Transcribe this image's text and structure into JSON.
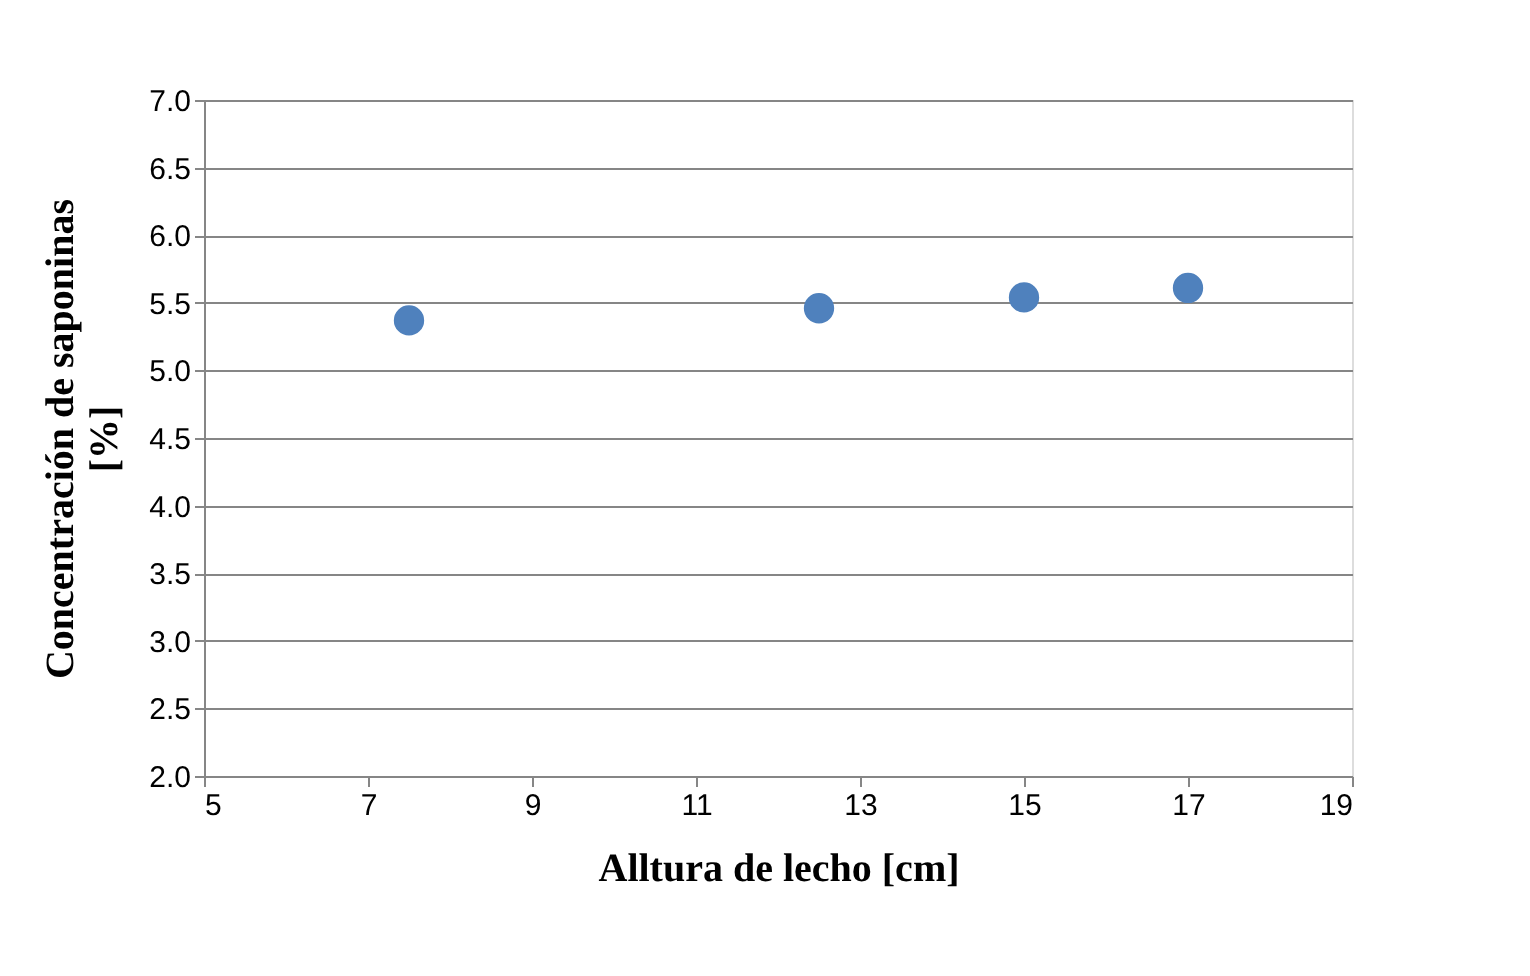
{
  "chart_data": {
    "type": "scatter",
    "xlabel": "Alltura de lecho [cm]",
    "ylabel": "Concentración de saponinas [%]",
    "x": [
      7.5,
      12.5,
      15,
      17
    ],
    "series": [
      {
        "color": "#4f81bd",
        "values": [
          5.37,
          5.46,
          5.54,
          5.61
        ]
      }
    ],
    "xlim": [
      5,
      19
    ],
    "xticks": [
      5,
      7,
      9,
      11,
      13,
      15,
      17,
      19
    ],
    "ylim": [
      2.0,
      7.0
    ],
    "yticks": [
      {
        "value": 2,
        "label": "2.0"
      },
      2.5,
      {
        "value": 3,
        "label": "3.0"
      },
      3.5,
      {
        "value": 4,
        "label": "4.0"
      },
      4.5,
      {
        "value": 5,
        "label": "5.0"
      },
      5.5,
      {
        "value": 6,
        "label": "6.0"
      },
      6.5,
      {
        "value": 7,
        "label": "7.0"
      }
    ],
    "grid": "y",
    "marker": "circle"
  }
}
